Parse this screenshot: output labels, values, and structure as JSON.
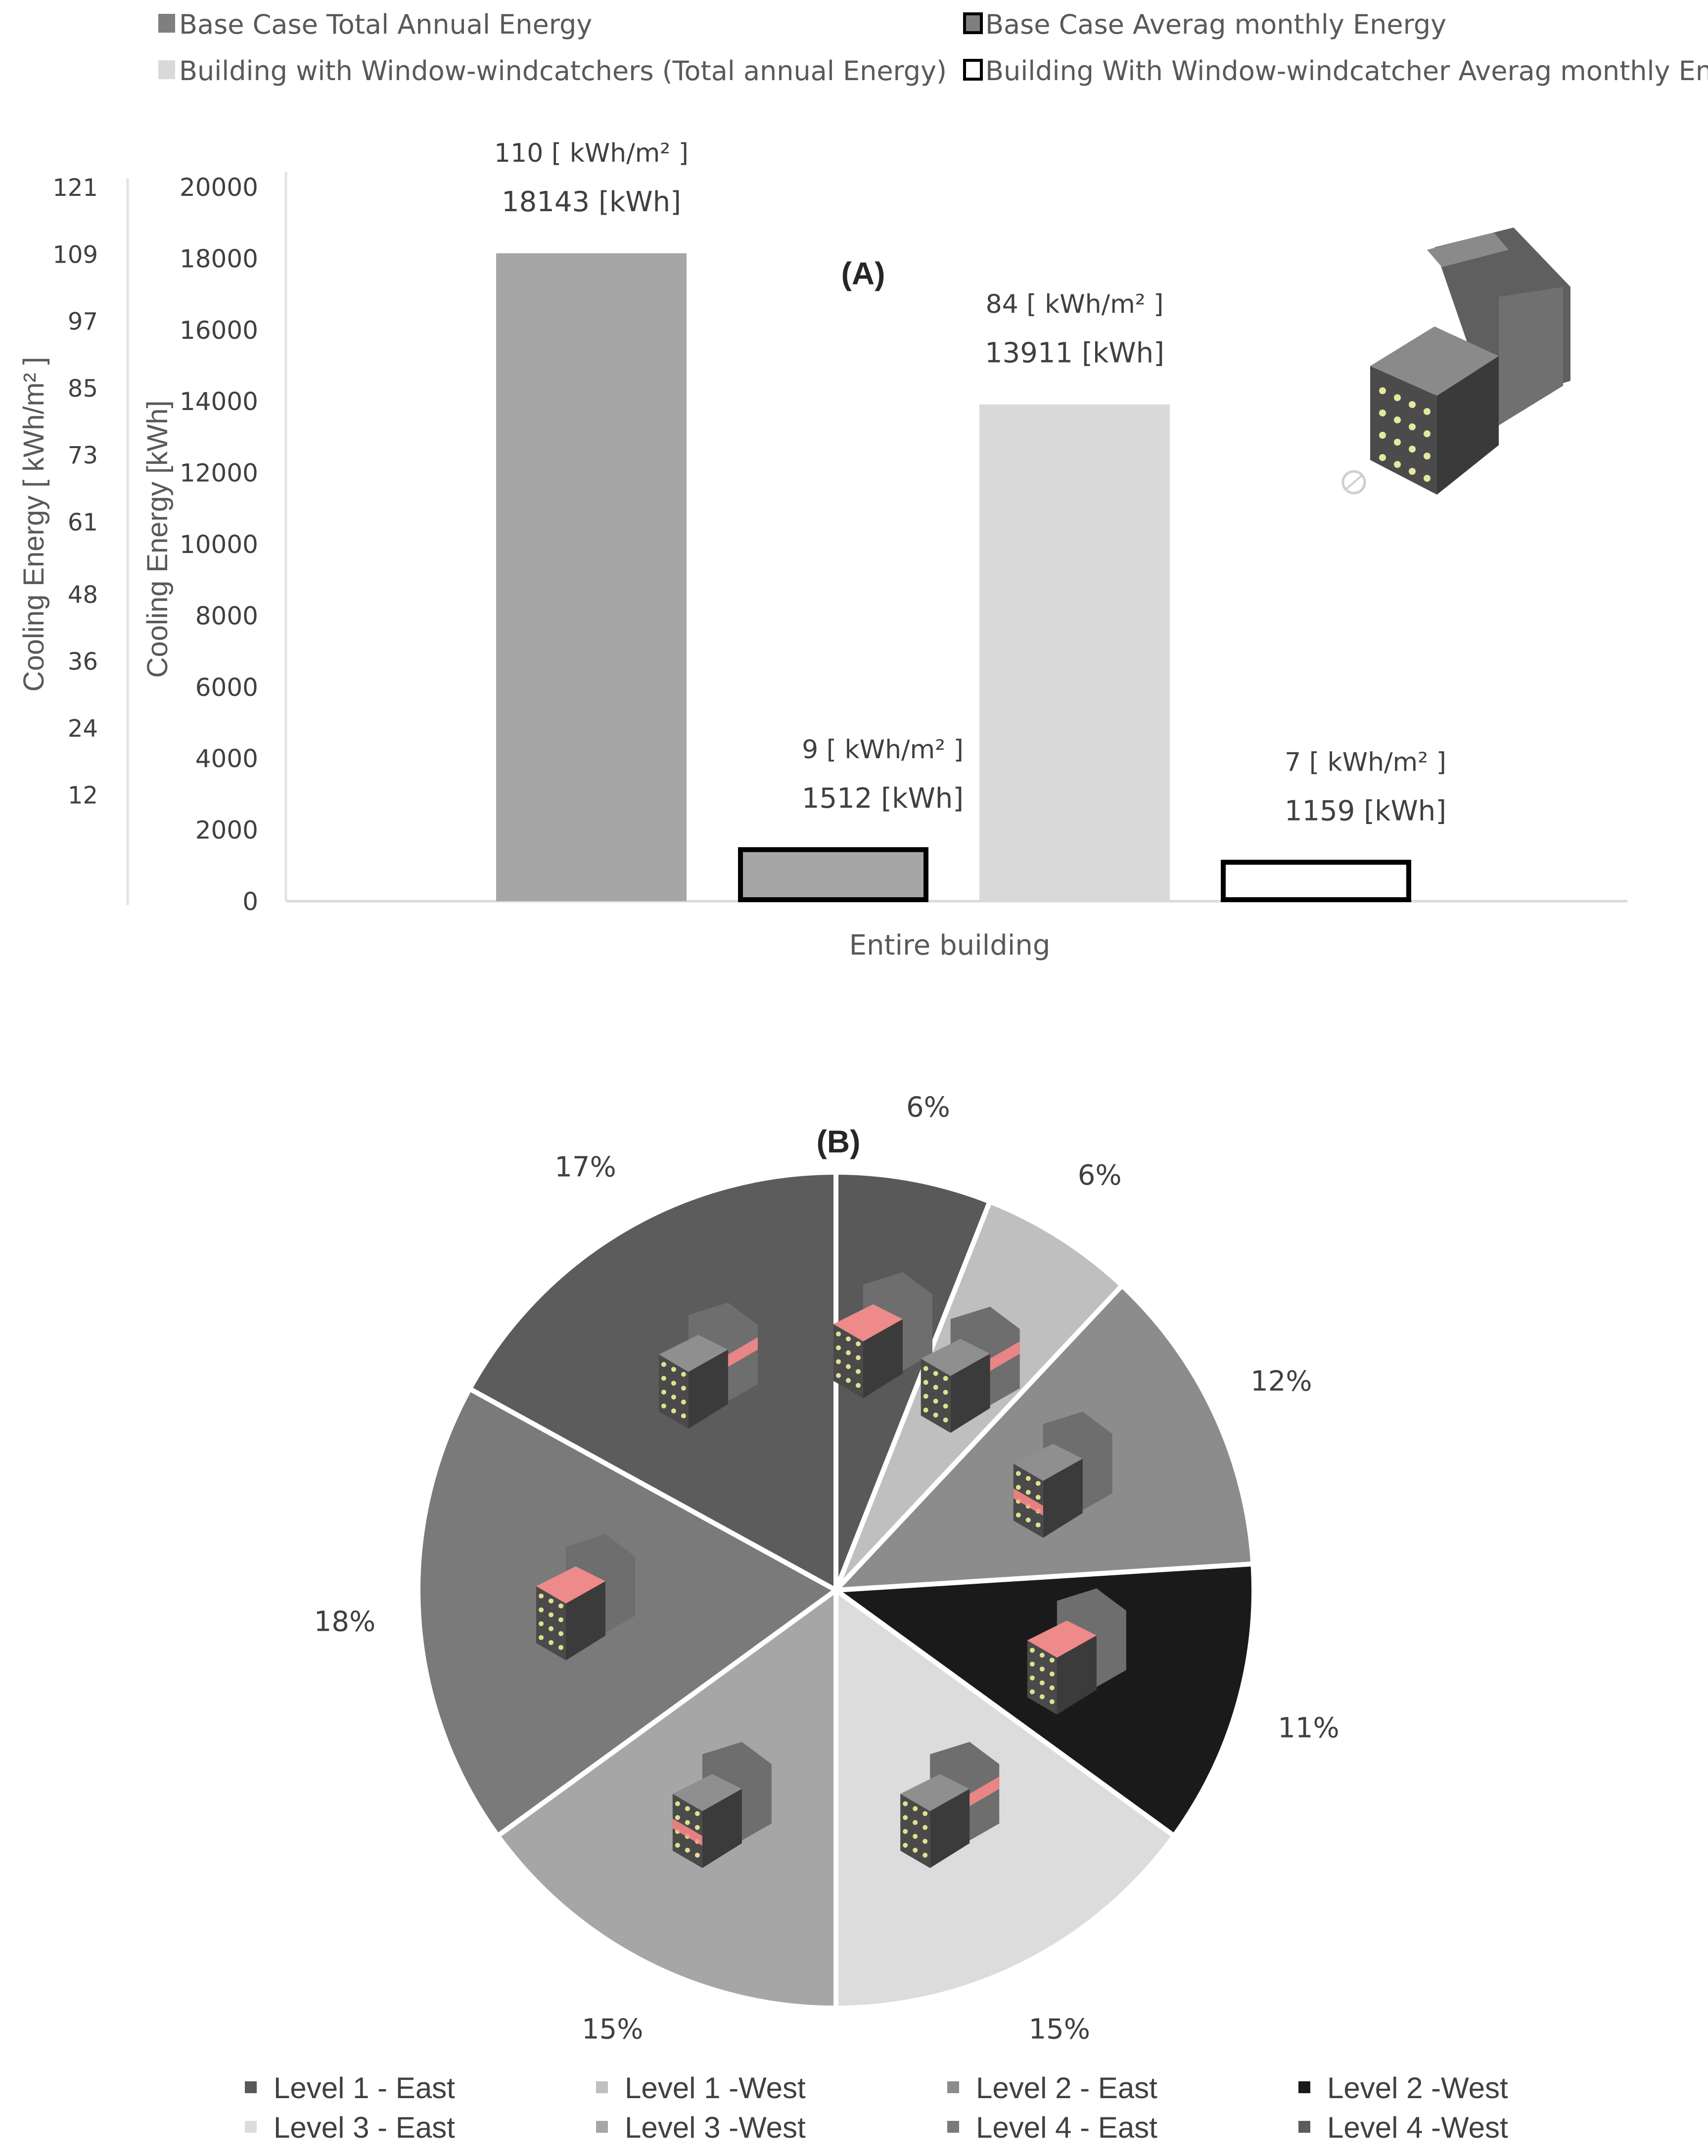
{
  "chart_data": [
    {
      "type": "bar",
      "panel_label": "(A)",
      "categories": [
        "Entire building"
      ],
      "series": [
        {
          "name": "Base Case Total Annual Energy",
          "value_kwh": 18143,
          "value_kwh_m2": 110,
          "label_top": "110  [ kWh/m² ]",
          "label_bottom": "18143  [kWh]",
          "fill": "#a6a6a6",
          "stroke": "none"
        },
        {
          "name": "Base Case Averag monthly Energy",
          "value_kwh": 1512,
          "value_kwh_m2": 9,
          "label_top": "9  [ kWh/m² ]",
          "label_bottom": "1512 [kWh]",
          "fill": "#a6a6a6",
          "stroke": "#000000"
        },
        {
          "name": "Building with Window-windcatchers (Total annual Energy)",
          "value_kwh": 13911,
          "value_kwh_m2": 84,
          "label_top": "84  [ kWh/m² ]",
          "label_bottom": "13911  [kWh]",
          "fill": "#d9d9d9",
          "stroke": "none"
        },
        {
          "name": "Building With Window-windcatcher Averag monthly Energy",
          "value_kwh": 1159,
          "value_kwh_m2": 7,
          "label_top": "7   [ kWh/m² ]",
          "label_bottom": "1159  [kWh]",
          "fill": "#ffffff",
          "stroke": "#000000"
        }
      ],
      "legend": [
        {
          "label": "Base Case Total Annual Energy",
          "fill": "#7f7f7f",
          "stroke": "none"
        },
        {
          "label": "Base Case Averag monthly Energy",
          "fill": "#7f7f7f",
          "stroke": "#000000"
        },
        {
          "label": "Building with Window-windcatchers (Total annual Energy)",
          "fill": "#d9d9d9",
          "stroke": "none"
        },
        {
          "label": "Building With Window-windcatcher Averag monthly Energy",
          "fill": "#ffffff",
          "stroke": "#000000"
        }
      ],
      "xlabel": "Entire building",
      "ylabel": "Cooling Energy [kWh]",
      "ylabel_secondary": "Cooling Energy  [ kWh/m² ]",
      "ylim": [
        0,
        20000
      ],
      "yticks": [
        "0",
        "2000",
        "4000",
        "6000",
        "8000",
        "10000",
        "12000",
        "14000",
        "16000",
        "18000",
        "20000"
      ],
      "yticks_secondary": [
        "12",
        "24",
        "36",
        "48",
        "61",
        "73",
        "85",
        "97",
        "109",
        "121"
      ],
      "grid": false,
      "legend_position": "top"
    },
    {
      "type": "pie",
      "panel_label": "(B)",
      "slices": [
        {
          "label": "Level 1 - East",
          "value": 6,
          "label_text": "6%",
          "color": "#595959"
        },
        {
          "label": "Level 1 -West",
          "value": 6,
          "label_text": "6%",
          "color": "#bfbfbf"
        },
        {
          "label": "Level 2 - East",
          "value": 12,
          "label_text": "12%",
          "color": "#8c8c8c"
        },
        {
          "label": "Level 2 -West",
          "value": 11,
          "label_text": "11%",
          "color": "#1a1a1a"
        },
        {
          "label": "Level 3 - East",
          "value": 15,
          "label_text": "15%",
          "color": "#dcdcdc"
        },
        {
          "label": "Level 3 -West",
          "value": 15,
          "label_text": "15%",
          "color": "#a6a6a6"
        },
        {
          "label": "Level 4 - East",
          "value": 18,
          "label_text": "18%",
          "color": "#7a7a7a"
        },
        {
          "label": "Level 4 -West",
          "value": 17,
          "label_text": "17%",
          "color": "#5c5c5c"
        }
      ],
      "legend_position": "bottom"
    }
  ]
}
